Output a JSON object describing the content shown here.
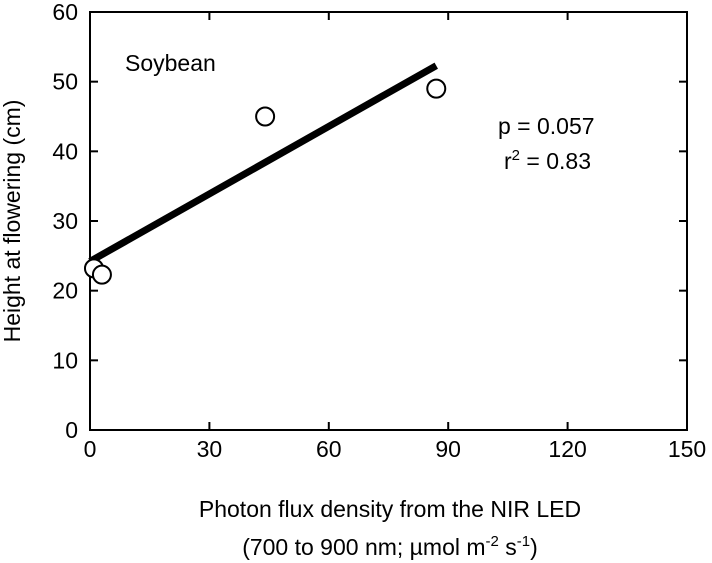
{
  "chart_data": {
    "type": "scatter",
    "xlabel_line1": "Photon flux density from the NIR LED",
    "xlabel_line2_prefix": "(700 to 900 nm; µmol m",
    "xlabel_line2_exp1": "-2",
    "xlabel_line2_mid": " s",
    "xlabel_line2_exp2": "-1",
    "xlabel_line2_suffix": ")",
    "ylabel": "Height at flowering (cm)",
    "xlim": [
      0,
      150
    ],
    "ylim": [
      0,
      60
    ],
    "xticks": [
      0,
      30,
      60,
      90,
      120,
      150
    ],
    "yticks": [
      0,
      10,
      20,
      30,
      40,
      50,
      60
    ],
    "grid": false,
    "series": [
      {
        "points": [
          {
            "x": 1,
            "y": 23.2
          },
          {
            "x": 3,
            "y": 22.3
          },
          {
            "x": 44,
            "y": 45
          },
          {
            "x": 87,
            "y": 49
          }
        ]
      }
    ],
    "fit_line": {
      "x": [
        0,
        87
      ],
      "y": [
        24.2,
        52.3
      ]
    },
    "annotations": {
      "crop": "Soybean",
      "p_value": "p = 0.057",
      "r2_prefix": "r",
      "r2_exp": "2",
      "r2_value": " = 0.83"
    },
    "colors": {
      "line": "#000000",
      "marker_fill": "#ffffff",
      "marker_stroke": "#000000"
    }
  }
}
